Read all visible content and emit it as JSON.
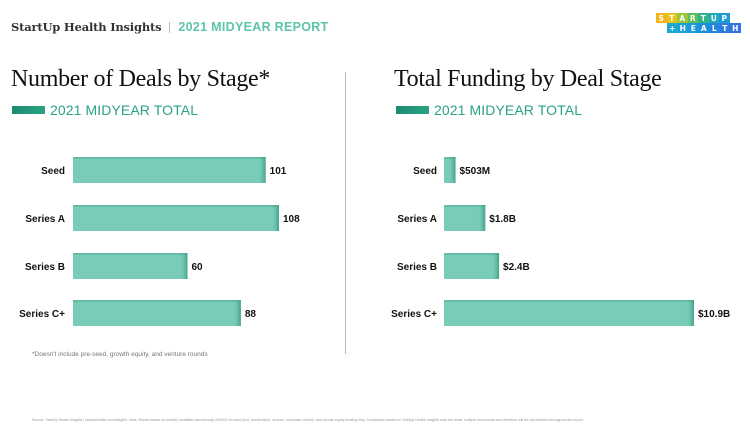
{
  "header": {
    "brand": "StartUp Health Insights",
    "report": "2021 MIDYEAR REPORT"
  },
  "logo": {
    "line1": [
      "S",
      "T",
      "A",
      "R",
      "T",
      "U",
      "P"
    ],
    "line2": [
      "+",
      "H",
      "E",
      "A",
      "L",
      "T",
      "H"
    ],
    "colors1": [
      "#f2b51c",
      "#e9c21a",
      "#9ac43a",
      "#5cbf5a",
      "#2fb586",
      "#22a9b9",
      "#1e9bd6"
    ],
    "colors2": [
      "#1fa6d2",
      "#1c9fda",
      "#1b97de",
      "#1d8fe0",
      "#2285de",
      "#2d7ddd",
      "#3574dc"
    ]
  },
  "bar_color": "#79cdb8",
  "bar_edge_color": "#3f9c83",
  "chart_data": [
    {
      "type": "bar",
      "orientation": "horizontal",
      "title": "Number of Deals by Stage*",
      "legend": "2021 MIDYEAR TOTAL",
      "categories": [
        "Seed",
        "Series A",
        "Series B",
        "Series C+"
      ],
      "values": [
        101,
        108,
        60,
        88
      ],
      "labels": [
        "101",
        "108",
        "60",
        "88"
      ],
      "xlabel": "",
      "ylabel": "",
      "xlim": [
        0,
        108
      ],
      "grid": false
    },
    {
      "type": "bar",
      "orientation": "horizontal",
      "title": "Total Funding by Deal Stage",
      "legend": "2021 MIDYEAR TOTAL",
      "categories": [
        "Seed",
        "Series A",
        "Series B",
        "Series C+"
      ],
      "values": [
        0.503,
        1.8,
        2.4,
        10.9
      ],
      "units": "USD billions",
      "labels": [
        "$503M",
        "$1.8B",
        "$2.4B",
        "$10.9B"
      ],
      "xlabel": "",
      "ylabel": "",
      "xlim": [
        0,
        10.9
      ],
      "grid": false
    }
  ],
  "footnote": "*Doesn't include pre-seed, growth equity, and venture rounds",
  "source": "Source: StartUp Health Insights | startuphealth.com/insights. Note: Report based on publicly available data through 6/30/21 on seed (incl. accelerator), venture, corporate venture, and private equity funding only. Companies tracked in StartUp Health Insights may fall under multiple moonshots and therefore will be represented throughout the report."
}
